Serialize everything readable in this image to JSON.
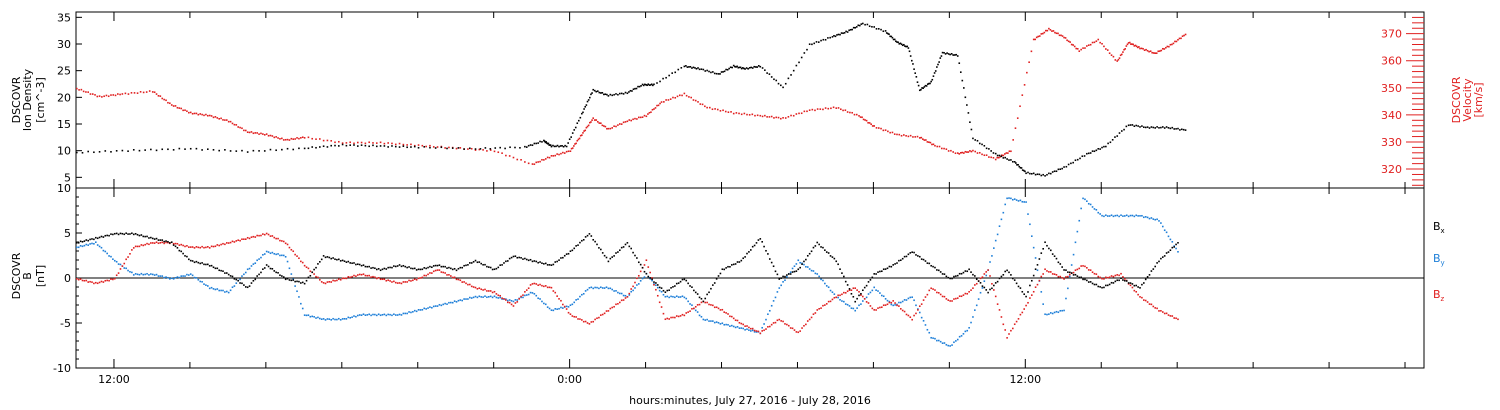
{
  "colors": {
    "black": "#000000",
    "red": "#e02020",
    "blue": "#1e7fd8"
  },
  "xaxis": {
    "label": "hours:minutes, July 27, 2016 - July 28, 2016",
    "ticks": [
      "12:00",
      "0:00",
      "12:00"
    ]
  },
  "chart_data": [
    {
      "type": "scatter",
      "panel": "top",
      "ylabel_left": [
        "DSCOVR",
        "Ion Density",
        "[cm^-3]"
      ],
      "ylabel_right": [
        "DSCOVR",
        "Velocity",
        "[km/s]"
      ],
      "ylim_left": [
        3,
        36
      ],
      "yticks_left": [
        5,
        10,
        15,
        20,
        25,
        30,
        35
      ],
      "ylim_right": [
        313,
        378
      ],
      "yticks_right": [
        320,
        330,
        340,
        350,
        360,
        370
      ],
      "xlim_hours": [
        11.0,
        46.5
      ],
      "grid": false,
      "series": [
        {
          "label": "Ion Density",
          "color": "#000000",
          "axis": "left",
          "x": [
            11.0,
            12.5,
            14.0,
            15.5,
            17.0,
            18.0,
            19.0,
            20.0,
            21.5,
            22.8,
            23.3,
            23.5,
            23.9,
            24.3,
            24.6,
            25.0,
            25.5,
            25.9,
            26.2,
            27.0,
            27.4,
            27.9,
            28.3,
            28.6,
            29.0,
            29.6,
            30.3,
            30.9,
            31.3,
            31.7,
            32.3,
            32.6,
            32.9,
            33.2,
            33.5,
            33.8,
            34.2,
            34.6,
            35.2,
            35.7,
            36.0,
            36.5,
            37.0,
            37.6,
            38.1,
            38.7,
            39.2,
            39.7,
            40.2
          ],
          "y": [
            9.8,
            10.2,
            10.5,
            10.0,
            10.6,
            11.2,
            11.0,
            10.8,
            10.5,
            10.8,
            12.0,
            11.0,
            11.0,
            17.0,
            21.5,
            20.5,
            21.0,
            22.5,
            22.5,
            26.0,
            25.5,
            24.5,
            26.0,
            25.5,
            26.0,
            22.0,
            30.0,
            31.5,
            32.5,
            34.0,
            32.5,
            30.5,
            29.5,
            21.5,
            23.0,
            28.5,
            28.0,
            12.5,
            9.5,
            8.0,
            6.0,
            5.5,
            7.0,
            9.5,
            11.0,
            15.0,
            14.5,
            14.5,
            14.0
          ]
        },
        {
          "label": "Velocity",
          "color": "#e02020",
          "axis": "right",
          "x": [
            11.0,
            11.6,
            12.2,
            13.0,
            13.5,
            14.0,
            14.5,
            15.0,
            15.5,
            16.0,
            16.5,
            17.0,
            18.0,
            19.0,
            20.0,
            21.0,
            22.0,
            23.0,
            23.5,
            24.0,
            24.3,
            24.6,
            25.0,
            25.5,
            26.0,
            26.4,
            27.0,
            27.6,
            28.3,
            29.0,
            29.6,
            30.3,
            31.0,
            31.6,
            32.0,
            32.6,
            33.2,
            33.6,
            34.2,
            34.6,
            35.2,
            35.6,
            36.2,
            36.6,
            37.0,
            37.4,
            37.9,
            38.4,
            38.7,
            39.0,
            39.4,
            39.8,
            40.2
          ],
          "y": [
            350,
            347,
            348,
            349,
            344,
            341,
            340,
            338,
            334,
            333,
            331,
            332,
            330,
            330,
            329,
            328,
            327,
            322,
            325,
            327,
            333,
            339,
            335,
            338,
            340,
            345,
            348,
            343,
            341,
            340,
            339,
            342,
            343,
            340,
            336,
            333,
            332,
            329,
            326,
            327,
            324,
            327,
            368,
            372,
            369,
            364,
            368,
            360,
            367,
            365,
            363,
            366,
            370
          ]
        }
      ]
    },
    {
      "type": "scatter",
      "panel": "bottom",
      "ylabel_left": [
        "DSCOVR",
        "B",
        "[nT]"
      ],
      "ylim": [
        -10,
        10
      ],
      "yticks": [
        -10,
        -5,
        0,
        5,
        10
      ],
      "xlim_hours": [
        11.0,
        46.5
      ],
      "zero_line": true,
      "legend_placement": "right",
      "legend": [
        "Bx",
        "By",
        "Bz"
      ],
      "series": [
        {
          "label": "Bx",
          "color": "#000000",
          "x": [
            11.0,
            11.5,
            12.0,
            12.5,
            13.0,
            13.5,
            14.0,
            14.5,
            15.0,
            15.5,
            16.0,
            16.5,
            17.0,
            17.5,
            18.0,
            18.5,
            19.0,
            19.5,
            20.0,
            20.5,
            21.0,
            21.5,
            22.0,
            22.5,
            23.0,
            23.5,
            24.0,
            24.5,
            25.0,
            25.5,
            26.0,
            26.5,
            27.0,
            27.5,
            28.0,
            28.5,
            29.0,
            29.5,
            30.0,
            30.5,
            31.0,
            31.5,
            32.0,
            32.5,
            33.0,
            33.5,
            34.0,
            34.5,
            35.0,
            35.5,
            36.0,
            36.5,
            37.0,
            37.5,
            38.0,
            38.5,
            39.0,
            39.5,
            40.0
          ],
          "y": [
            4.0,
            4.5,
            5.0,
            5.0,
            4.5,
            4.0,
            2.0,
            1.5,
            0.5,
            -1.0,
            1.5,
            0.0,
            -0.5,
            2.5,
            2.0,
            1.5,
            1.0,
            1.5,
            1.0,
            1.5,
            1.0,
            2.0,
            1.0,
            2.5,
            2.0,
            1.5,
            3.0,
            5.0,
            2.0,
            4.0,
            0.5,
            -1.5,
            0.0,
            -2.5,
            1.0,
            2.0,
            4.5,
            0.0,
            1.0,
            4.0,
            2.0,
            -2.5,
            0.5,
            1.5,
            3.0,
            1.5,
            0.0,
            1.0,
            -1.5,
            1.0,
            -2.0,
            4.0,
            1.0,
            0.0,
            -1.0,
            0.0,
            -1.0,
            2.0,
            4.0
          ]
        },
        {
          "label": "By",
          "color": "#1e7fd8",
          "x": [
            11.0,
            11.5,
            12.0,
            12.5,
            13.0,
            13.5,
            14.0,
            14.5,
            15.0,
            15.5,
            16.0,
            16.5,
            17.0,
            17.5,
            18.0,
            18.5,
            19.0,
            19.5,
            20.0,
            20.5,
            21.0,
            21.5,
            22.0,
            22.5,
            23.0,
            23.5,
            24.0,
            24.5,
            25.0,
            25.5,
            26.0,
            26.5,
            27.0,
            27.5,
            28.0,
            28.5,
            29.0,
            29.5,
            30.0,
            30.5,
            31.0,
            31.5,
            32.0,
            32.5,
            33.0,
            33.5,
            34.0,
            34.5,
            35.0,
            35.5,
            36.0,
            36.5,
            37.0,
            37.5,
            38.0,
            38.5,
            39.0,
            39.5,
            40.0
          ],
          "y": [
            3.5,
            4.0,
            2.0,
            0.5,
            0.5,
            0.0,
            0.5,
            -1.0,
            -1.5,
            1.0,
            3.0,
            2.5,
            -4.0,
            -4.5,
            -4.5,
            -4.0,
            -4.0,
            -4.0,
            -3.5,
            -3.0,
            -2.5,
            -2.0,
            -2.0,
            -2.5,
            -1.5,
            -3.5,
            -3.0,
            -1.0,
            -1.0,
            -2.0,
            0.5,
            -2.0,
            -2.0,
            -4.5,
            -5.0,
            -5.5,
            -6.0,
            -1.0,
            2.0,
            0.5,
            -2.0,
            -3.5,
            -1.0,
            -3.0,
            -2.0,
            -6.5,
            -7.5,
            -5.5,
            1.0,
            9.0,
            8.5,
            -4.0,
            -3.5,
            9.0,
            7.0,
            7.0,
            7.0,
            6.5,
            3.0
          ]
        },
        {
          "label": "Bz",
          "color": "#e02020",
          "x": [
            11.0,
            11.5,
            12.0,
            12.5,
            13.0,
            13.5,
            14.0,
            14.5,
            15.0,
            15.5,
            16.0,
            16.5,
            17.0,
            17.5,
            18.0,
            18.5,
            19.0,
            19.5,
            20.0,
            20.5,
            21.0,
            21.5,
            22.0,
            22.5,
            23.0,
            23.5,
            24.0,
            24.5,
            25.0,
            25.5,
            26.0,
            26.5,
            27.0,
            27.5,
            28.0,
            28.5,
            29.0,
            29.5,
            30.0,
            30.5,
            31.0,
            31.5,
            32.0,
            32.5,
            33.0,
            33.5,
            34.0,
            34.5,
            35.0,
            35.5,
            36.0,
            36.5,
            37.0,
            37.5,
            38.0,
            38.5,
            39.0,
            39.5,
            40.0
          ],
          "y": [
            0.0,
            -0.5,
            0.0,
            3.5,
            4.0,
            4.0,
            3.5,
            3.5,
            4.0,
            4.5,
            5.0,
            4.0,
            1.5,
            -0.5,
            0.0,
            0.5,
            0.0,
            -0.5,
            0.0,
            1.0,
            0.0,
            -1.0,
            -1.5,
            -3.0,
            -0.5,
            -1.0,
            -4.0,
            -5.0,
            -3.5,
            -2.0,
            2.0,
            -4.5,
            -4.0,
            -2.5,
            -3.5,
            -5.0,
            -6.0,
            -4.5,
            -6.0,
            -3.5,
            -2.0,
            -1.0,
            -3.5,
            -2.5,
            -4.5,
            -1.0,
            -2.5,
            -1.5,
            1.0,
            -6.5,
            -3.0,
            1.0,
            0.0,
            1.5,
            0.0,
            0.5,
            -2.0,
            -3.5,
            -4.5
          ]
        }
      ]
    }
  ]
}
